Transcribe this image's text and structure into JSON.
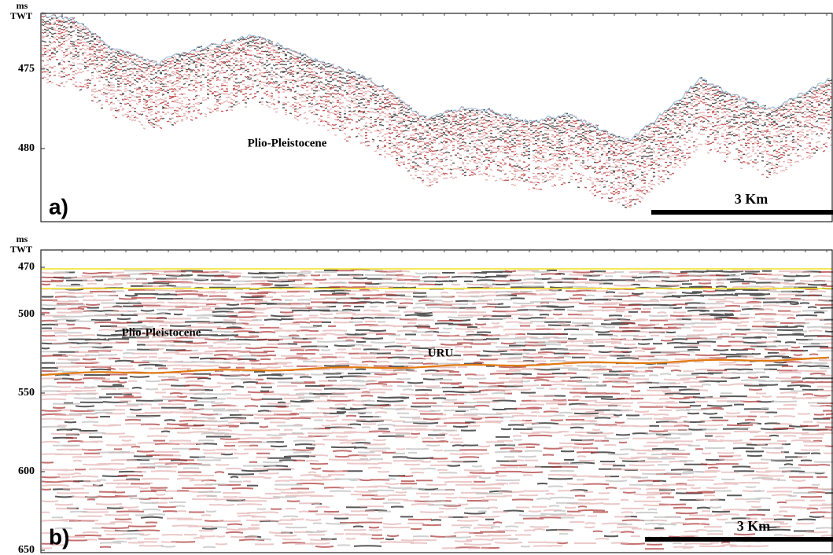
{
  "panels": [
    {
      "label": "a)",
      "y_unit": "ms",
      "y_axis_title": "TWT",
      "ylim": [
        471.5,
        484.6
      ],
      "yticks": [
        475,
        480
      ],
      "annotations": [
        "Plio-Pleistocene"
      ],
      "scale_bar": "3 Km"
    },
    {
      "label": "b)",
      "y_unit": "ms",
      "y_axis_title": "TWT",
      "ylim": [
        459,
        651.5
      ],
      "yticks": [
        470,
        500,
        550,
        600,
        650
      ],
      "annotations": [
        "Plio-Pleistocene",
        "URU"
      ],
      "scale_bar": "3 Km"
    }
  ]
}
